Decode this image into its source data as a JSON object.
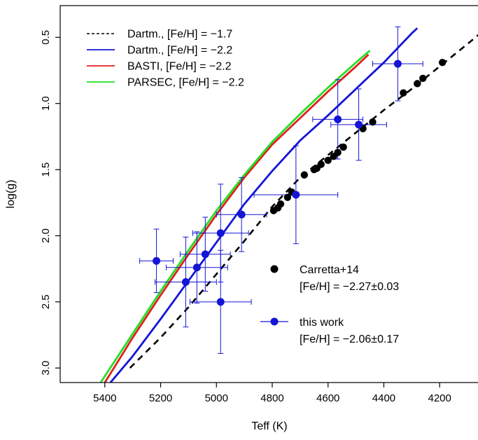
{
  "chart_data": {
    "type": "scatter",
    "xlabel": "Teff (K)",
    "ylabel": "log(g)",
    "xlim": [
      5560,
      4060
    ],
    "ylim": [
      3.11,
      0.26
    ],
    "x_axis_reversed": true,
    "y_axis_reversed": true,
    "x_ticks": [
      5400,
      5200,
      5000,
      4800,
      4600,
      4400,
      4200
    ],
    "y_ticks": [
      0.5,
      1.0,
      1.5,
      2.0,
      2.5,
      3.0
    ],
    "x_tick_labels": [
      "5400",
      "5200",
      "5000",
      "4800",
      "4600",
      "4400",
      "4200"
    ],
    "y_tick_labels": [
      "0.5",
      "1.0",
      "1.5",
      "2.0",
      "2.5",
      "3.0"
    ],
    "grid": false,
    "legend_position": "top-left",
    "isochrones": [
      {
        "name": "Dartm., [Fe/H] = −1.7",
        "color": "#000000",
        "dash": true,
        "x": [
          5310,
          5200,
          5100,
          5000,
          4900,
          4800,
          4700,
          4600,
          4500,
          4400,
          4300,
          4200,
          4100,
          4060
        ],
        "y": [
          3.0,
          2.77,
          2.54,
          2.29,
          2.04,
          1.78,
          1.56,
          1.39,
          1.22,
          1.05,
          0.89,
          0.72,
          0.55,
          0.48
        ]
      },
      {
        "name": "Dartm., [Fe/H] = −2.2",
        "color": "#1515d6",
        "dash": false,
        "x": [
          5380,
          5300,
          5200,
          5100,
          5000,
          4900,
          4800,
          4700,
          4600,
          4500,
          4400,
          4300,
          4280
        ],
        "y": [
          3.11,
          2.91,
          2.63,
          2.34,
          2.05,
          1.76,
          1.51,
          1.28,
          1.09,
          0.89,
          0.69,
          0.47,
          0.43
        ]
      },
      {
        "name": "BASTI, [Fe/H] = −2.2",
        "color": "#e02020",
        "dash": false,
        "x": [
          5400,
          5300,
          5200,
          5100,
          5000,
          4900,
          4800,
          4700,
          4600,
          4500,
          4455
        ],
        "y": [
          3.11,
          2.77,
          2.45,
          2.14,
          1.84,
          1.56,
          1.31,
          1.11,
          0.91,
          0.72,
          0.63
        ]
      },
      {
        "name": "PARSEC, [Fe/H] = −2.2",
        "color": "#22e022",
        "dash": false,
        "x": [
          5415,
          5300,
          5200,
          5100,
          5000,
          4900,
          4800,
          4700,
          4600,
          4500,
          4450
        ],
        "y": [
          3.11,
          2.74,
          2.42,
          2.11,
          1.81,
          1.54,
          1.29,
          1.08,
          0.88,
          0.69,
          0.6
        ]
      }
    ],
    "carretta_points": {
      "name": "Carretta+14",
      "feh_label": "[Fe/H] = −2.27±0.03",
      "color": "#000000",
      "x": [
        4190,
        4260,
        4280,
        4330,
        4440,
        4475,
        4490,
        4545,
        4565,
        4580,
        4600,
        4625,
        4640,
        4650,
        4685,
        4730,
        4745,
        4770,
        4780,
        4795
      ],
      "y": [
        0.69,
        0.81,
        0.85,
        0.92,
        1.14,
        1.19,
        1.16,
        1.33,
        1.37,
        1.4,
        1.43,
        1.46,
        1.49,
        1.5,
        1.54,
        1.67,
        1.71,
        1.76,
        1.79,
        1.81
      ]
    },
    "this_work": {
      "name": "this work",
      "feh_label": "[Fe/H] = −2.06±0.17",
      "color": "#1515d6",
      "points": [
        {
          "x": 4350,
          "y": 0.7,
          "xerr": 90,
          "yerr": 0.28
        },
        {
          "x": 4565,
          "y": 1.12,
          "xerr": 90,
          "yerr": 0.3
        },
        {
          "x": 4490,
          "y": 1.16,
          "xerr": 100,
          "yerr": 0.27
        },
        {
          "x": 4715,
          "y": 1.69,
          "xerr": 150,
          "yerr": 0.37
        },
        {
          "x": 4910,
          "y": 1.84,
          "xerr": 90,
          "yerr": 0.28
        },
        {
          "x": 4985,
          "y": 1.98,
          "xerr": 100,
          "yerr": 0.37
        },
        {
          "x": 5215,
          "y": 2.19,
          "xerr": 60,
          "yerr": 0.24
        },
        {
          "x": 5040,
          "y": 2.14,
          "xerr": 90,
          "yerr": 0.28
        },
        {
          "x": 5070,
          "y": 2.24,
          "xerr": 110,
          "yerr": 0.27
        },
        {
          "x": 5110,
          "y": 2.35,
          "xerr": 110,
          "yerr": 0.34
        },
        {
          "x": 4985,
          "y": 2.5,
          "xerr": 110,
          "yerr": 0.39
        }
      ]
    }
  }
}
